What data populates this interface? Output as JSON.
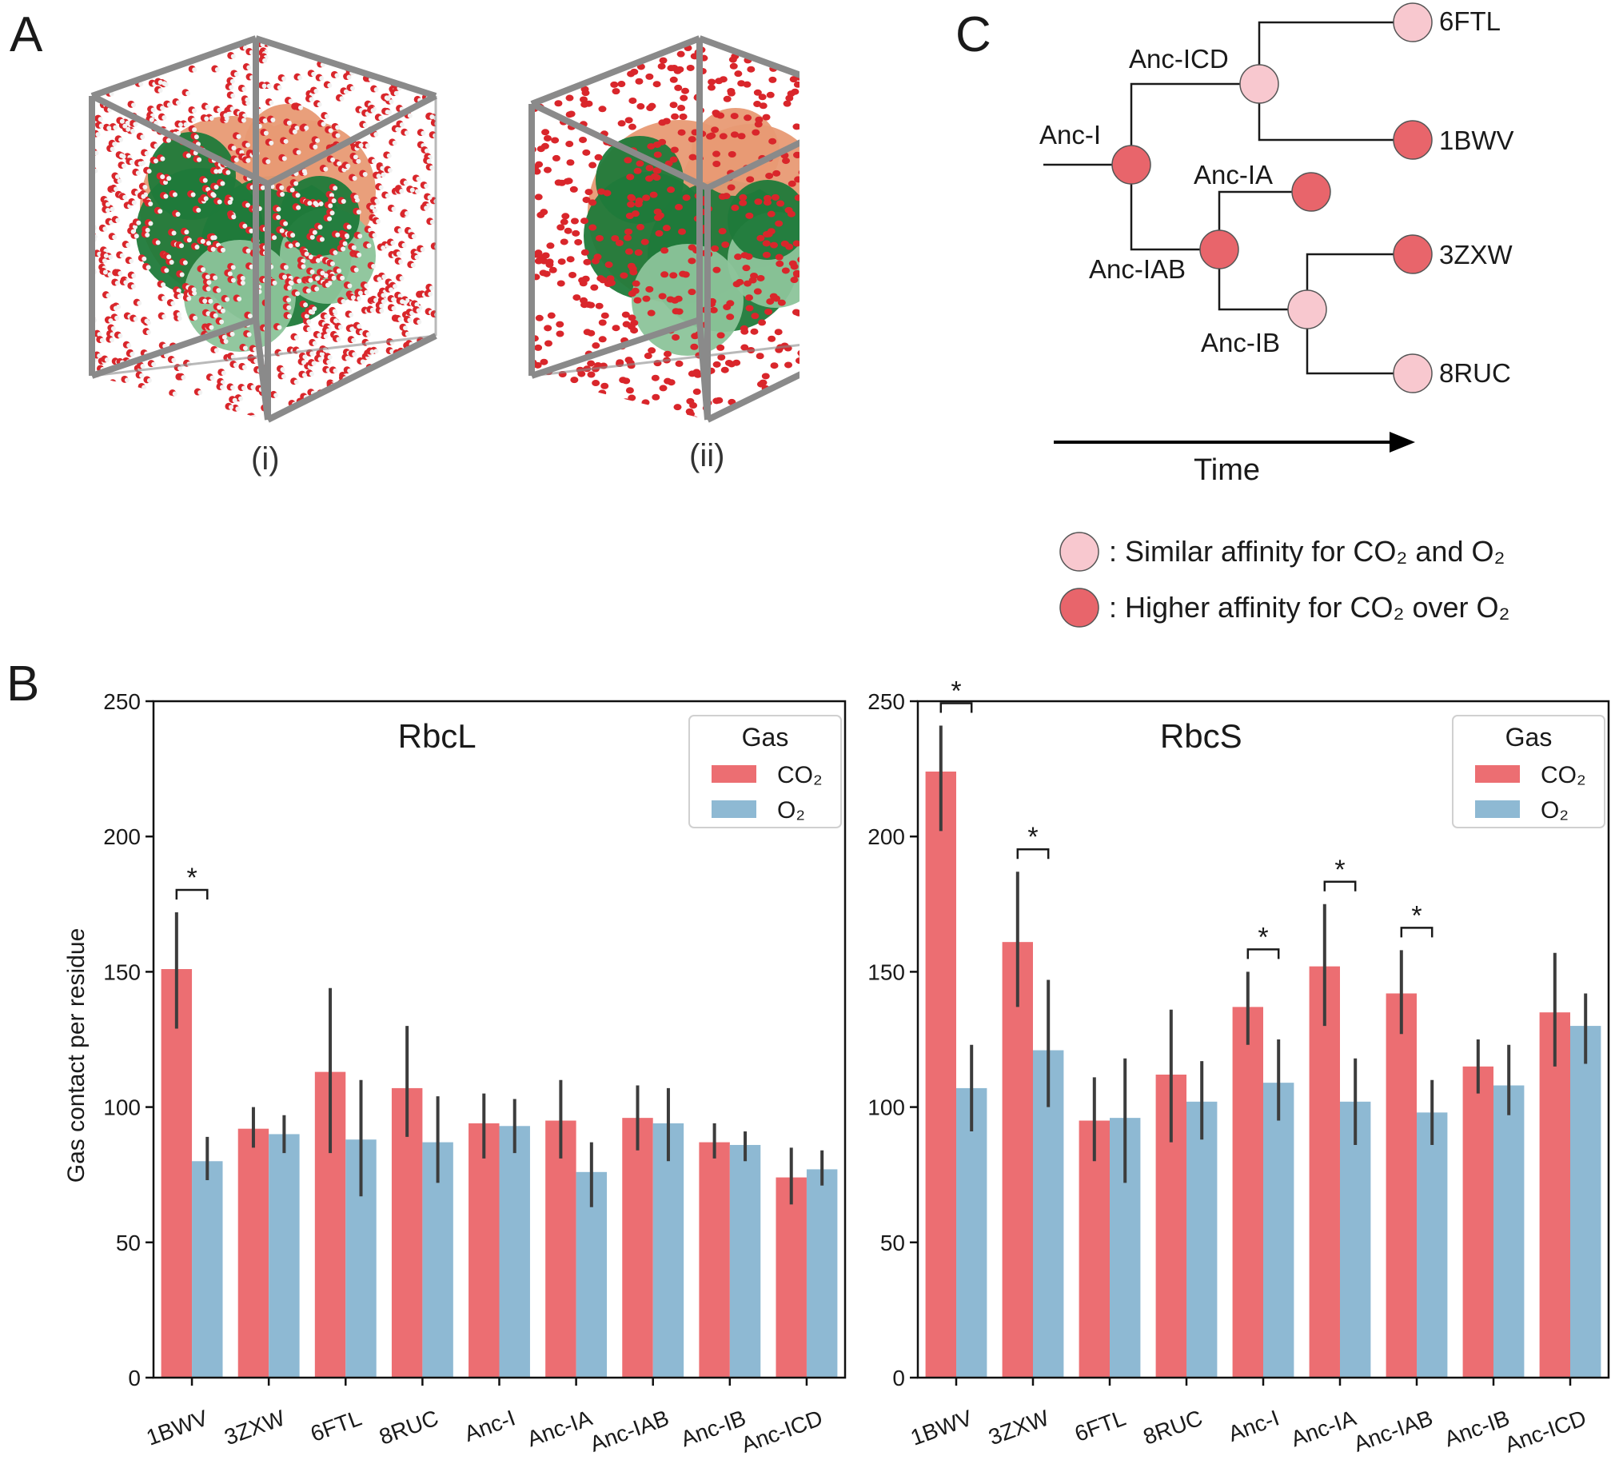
{
  "panels": {
    "a": "A",
    "b": "B",
    "c": "C"
  },
  "panel_a": {
    "captions": [
      "(i)",
      "(ii)"
    ],
    "colors": {
      "box": "#8a8a8a",
      "gas_red": "#d9262b",
      "gas_white": "#f2f2f2",
      "protein_dark": "#1f7a3a",
      "protein_light": "#8cc49a",
      "protein_salmon": "#e89a74"
    }
  },
  "panel_c": {
    "nodes": {
      "anc_i": "Anc-I",
      "anc_icd": "Anc-ICD",
      "anc_ia": "Anc-IA",
      "anc_iab": "Anc-IAB",
      "anc_ib": "Anc-IB",
      "l6ftl": "6FTL",
      "l1bwv": "1BWV",
      "l3zxw": "3ZXW",
      "l8ruc": "8RUC"
    },
    "time_label": "Time",
    "legend": {
      "similar": ": Similar affinity for CO₂ and O₂",
      "higher": ": Higher affinity for CO₂ over O₂"
    },
    "colors": {
      "similar": "#f8c8cf",
      "higher": "#e8656b"
    }
  },
  "chart_data": [
    {
      "type": "bar",
      "title": "RbcL",
      "xlabel": "",
      "ylabel": "Gas contact per residue",
      "ylim": [
        0,
        250
      ],
      "yticks": [
        "0",
        "50",
        "100",
        "150",
        "200",
        "250"
      ],
      "categories": [
        "1BWV",
        "3ZXW",
        "6FTL",
        "8RUC",
        "Anc-I",
        "Anc-IA",
        "Anc-IAB",
        "Anc-IB",
        "Anc-ICD"
      ],
      "legend": {
        "title": "Gas",
        "placement": "top-right"
      },
      "series": [
        {
          "name": "CO₂",
          "color": "#ec6e72",
          "values": [
            151,
            92,
            113,
            107,
            94,
            95,
            96,
            87,
            74
          ],
          "err_low": [
            129,
            85,
            83,
            89,
            81,
            81,
            84,
            81,
            64
          ],
          "err_high": [
            172,
            100,
            144,
            130,
            105,
            110,
            108,
            94,
            85
          ]
        },
        {
          "name": "O₂",
          "color": "#8eb9d3",
          "values": [
            80,
            90,
            88,
            87,
            93,
            76,
            94,
            86,
            77
          ],
          "err_low": [
            73,
            83,
            67,
            72,
            83,
            63,
            80,
            80,
            71
          ],
          "err_high": [
            89,
            97,
            110,
            104,
            103,
            87,
            107,
            91,
            84
          ]
        }
      ],
      "significance": [
        "1BWV"
      ],
      "significance_label": "*"
    },
    {
      "type": "bar",
      "title": "RbcS",
      "xlabel": "",
      "ylabel": "",
      "ylim": [
        0,
        250
      ],
      "yticks": [
        "0",
        "50",
        "100",
        "150",
        "200",
        "250"
      ],
      "categories": [
        "1BWV",
        "3ZXW",
        "6FTL",
        "8RUC",
        "Anc-I",
        "Anc-IA",
        "Anc-IAB",
        "Anc-IB",
        "Anc-ICD"
      ],
      "legend": {
        "title": "Gas",
        "placement": "top-right"
      },
      "series": [
        {
          "name": "CO₂",
          "color": "#ec6e72",
          "values": [
            224,
            161,
            95,
            112,
            137,
            152,
            142,
            115,
            135
          ],
          "err_low": [
            202,
            137,
            80,
            87,
            123,
            130,
            127,
            105,
            115
          ],
          "err_high": [
            241,
            187,
            111,
            136,
            150,
            175,
            158,
            125,
            157
          ]
        },
        {
          "name": "O₂",
          "color": "#8eb9d3",
          "values": [
            107,
            121,
            96,
            102,
            109,
            102,
            98,
            108,
            130
          ],
          "err_low": [
            91,
            100,
            72,
            88,
            95,
            86,
            86,
            97,
            116
          ],
          "err_high": [
            123,
            147,
            118,
            117,
            125,
            118,
            110,
            123,
            142
          ]
        }
      ],
      "significance": [
        "1BWV",
        "3ZXW",
        "Anc-I",
        "Anc-IA",
        "Anc-IAB"
      ],
      "significance_label": "*"
    }
  ]
}
